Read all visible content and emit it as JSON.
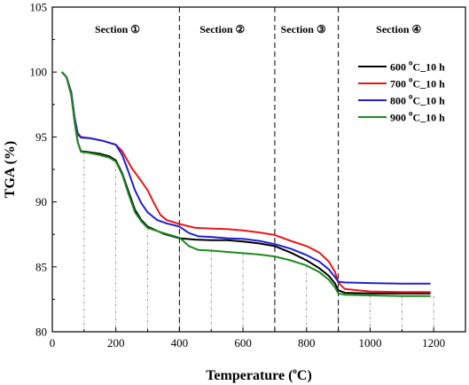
{
  "chart_data": {
    "type": "line",
    "xlabel_main": "Temperature (",
    "xlabel_sup": "o",
    "xlabel_end": "C)",
    "ylabel": "TGA (%)",
    "xlim": [
      0,
      1300
    ],
    "ylim": [
      80,
      105
    ],
    "xticks": [
      "0",
      "200",
      "400",
      "600",
      "800",
      "1000",
      "1200"
    ],
    "yticks": [
      "80",
      "85",
      "90",
      "95",
      "100",
      "105"
    ],
    "xtick_values": [
      0,
      200,
      400,
      600,
      800,
      1000,
      1200
    ],
    "ytick_values": [
      80,
      85,
      90,
      95,
      100,
      105
    ],
    "section_boundaries": [
      400,
      700,
      900
    ],
    "sections": [
      {
        "label": "Section ①",
        "center": 205
      },
      {
        "label": "Section ②",
        "center": 535
      },
      {
        "label": "Section ③",
        "center": 790
      },
      {
        "label": "Section ④",
        "center": 1090
      }
    ],
    "guide_x": [
      100,
      200,
      300,
      400,
      500,
      600,
      700,
      800,
      900,
      1000,
      1100,
      1200
    ],
    "legend_position": "top-right",
    "series": [
      {
        "name_main": "600 ",
        "name_sup": "o",
        "name_end": "C_10 h",
        "color": "#000000",
        "points": [
          [
            30,
            100
          ],
          [
            45,
            99.6
          ],
          [
            60,
            98.2
          ],
          [
            70,
            96.2
          ],
          [
            80,
            94.6
          ],
          [
            90,
            93.9
          ],
          [
            110,
            93.85
          ],
          [
            150,
            93.7
          ],
          [
            180,
            93.5
          ],
          [
            200,
            93.2
          ],
          [
            220,
            92.2
          ],
          [
            240,
            90.8
          ],
          [
            260,
            89.4
          ],
          [
            280,
            88.6
          ],
          [
            300,
            88.1
          ],
          [
            350,
            87.55
          ],
          [
            400,
            87.2
          ],
          [
            450,
            87.1
          ],
          [
            500,
            87.05
          ],
          [
            550,
            87.05
          ],
          [
            600,
            86.95
          ],
          [
            650,
            86.8
          ],
          [
            700,
            86.6
          ],
          [
            750,
            86.1
          ],
          [
            800,
            85.5
          ],
          [
            840,
            84.9
          ],
          [
            870,
            84.3
          ],
          [
            890,
            83.7
          ],
          [
            900,
            83.2
          ],
          [
            920,
            83.0
          ],
          [
            1000,
            82.95
          ],
          [
            1100,
            82.95
          ],
          [
            1190,
            82.95
          ]
        ]
      },
      {
        "name_main": "700 ",
        "name_sup": "o",
        "name_end": "C_10 h",
        "color": "#e8161b",
        "points": [
          [
            30,
            100
          ],
          [
            45,
            99.6
          ],
          [
            60,
            98.4
          ],
          [
            70,
            96.5
          ],
          [
            80,
            95.3
          ],
          [
            90,
            95.0
          ],
          [
            120,
            94.9
          ],
          [
            160,
            94.7
          ],
          [
            200,
            94.4
          ],
          [
            220,
            93.9
          ],
          [
            250,
            92.6
          ],
          [
            280,
            91.6
          ],
          [
            300,
            90.9
          ],
          [
            320,
            89.9
          ],
          [
            340,
            89.0
          ],
          [
            360,
            88.6
          ],
          [
            400,
            88.3
          ],
          [
            450,
            88.0
          ],
          [
            500,
            87.95
          ],
          [
            550,
            87.9
          ],
          [
            600,
            87.8
          ],
          [
            650,
            87.65
          ],
          [
            700,
            87.45
          ],
          [
            750,
            87.0
          ],
          [
            800,
            86.6
          ],
          [
            840,
            86.1
          ],
          [
            870,
            85.4
          ],
          [
            890,
            84.6
          ],
          [
            900,
            83.8
          ],
          [
            920,
            83.3
          ],
          [
            1000,
            83.1
          ],
          [
            1100,
            83.05
          ],
          [
            1190,
            83.05
          ]
        ]
      },
      {
        "name_main": "800 ",
        "name_sup": "o",
        "name_end": "C_10 h",
        "color": "#2020d0",
        "points": [
          [
            30,
            100
          ],
          [
            45,
            99.6
          ],
          [
            60,
            98.4
          ],
          [
            70,
            96.5
          ],
          [
            80,
            95.2
          ],
          [
            90,
            94.95
          ],
          [
            120,
            94.9
          ],
          [
            160,
            94.7
          ],
          [
            200,
            94.4
          ],
          [
            220,
            93.6
          ],
          [
            240,
            92.3
          ],
          [
            260,
            90.9
          ],
          [
            280,
            89.9
          ],
          [
            300,
            89.2
          ],
          [
            330,
            88.6
          ],
          [
            360,
            88.35
          ],
          [
            400,
            88.1
          ],
          [
            430,
            87.6
          ],
          [
            460,
            87.35
          ],
          [
            500,
            87.3
          ],
          [
            550,
            87.2
          ],
          [
            600,
            87.15
          ],
          [
            650,
            87.0
          ],
          [
            700,
            86.75
          ],
          [
            750,
            86.4
          ],
          [
            800,
            85.9
          ],
          [
            840,
            85.4
          ],
          [
            870,
            84.8
          ],
          [
            890,
            84.2
          ],
          [
            900,
            83.85
          ],
          [
            920,
            83.8
          ],
          [
            1000,
            83.75
          ],
          [
            1100,
            83.7
          ],
          [
            1190,
            83.7
          ]
        ]
      },
      {
        "name_main": "900 ",
        "name_sup": "o",
        "name_end": "C_10 h",
        "color": "#1f8a1f",
        "points": [
          [
            30,
            100
          ],
          [
            45,
            99.6
          ],
          [
            60,
            98.2
          ],
          [
            70,
            96.2
          ],
          [
            80,
            94.6
          ],
          [
            90,
            93.85
          ],
          [
            110,
            93.8
          ],
          [
            150,
            93.6
          ],
          [
            180,
            93.4
          ],
          [
            200,
            93.1
          ],
          [
            220,
            92.1
          ],
          [
            240,
            90.6
          ],
          [
            260,
            89.2
          ],
          [
            280,
            88.5
          ],
          [
            300,
            88.0
          ],
          [
            350,
            87.6
          ],
          [
            400,
            87.25
          ],
          [
            430,
            86.6
          ],
          [
            460,
            86.3
          ],
          [
            500,
            86.25
          ],
          [
            550,
            86.15
          ],
          [
            600,
            86.05
          ],
          [
            650,
            85.95
          ],
          [
            700,
            85.8
          ],
          [
            750,
            85.5
          ],
          [
            800,
            85.1
          ],
          [
            840,
            84.6
          ],
          [
            870,
            84.0
          ],
          [
            890,
            83.4
          ],
          [
            900,
            82.95
          ],
          [
            920,
            82.85
          ],
          [
            1000,
            82.8
          ],
          [
            1100,
            82.75
          ],
          [
            1190,
            82.75
          ]
        ]
      }
    ]
  }
}
